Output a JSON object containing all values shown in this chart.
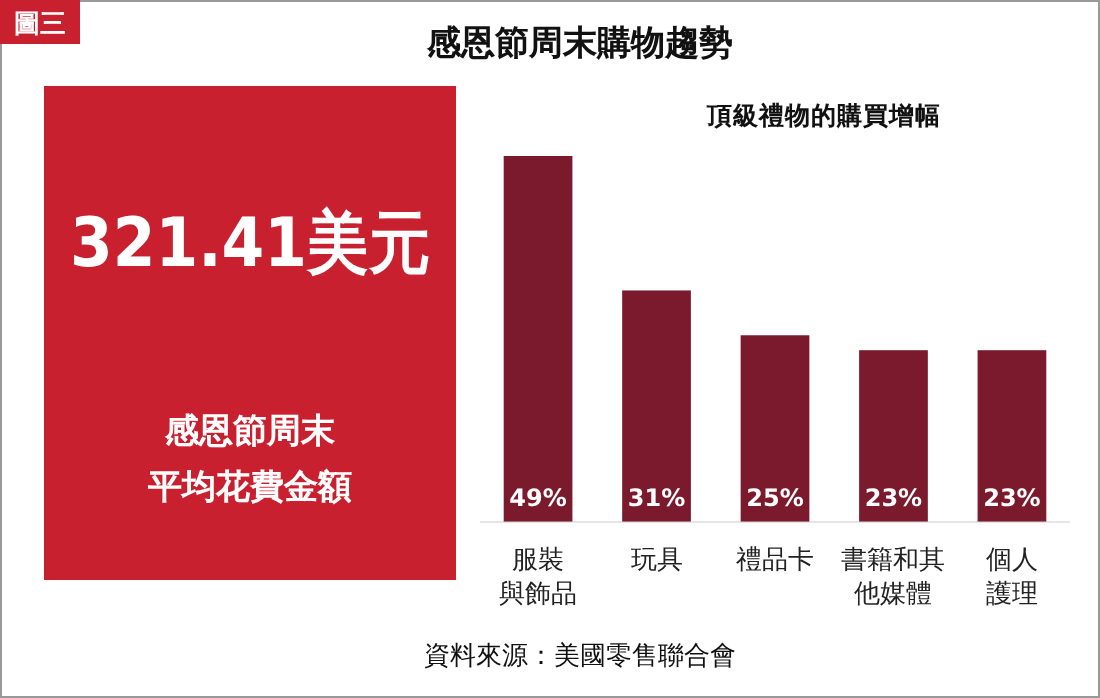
{
  "chart_data": [
    {
      "type": "bar",
      "title": "感恩節周末購物趨勢",
      "subtitle": "頂級禮物的購買增幅",
      "categories": [
        "服裝與飾品",
        "玩具",
        "禮品卡",
        "書籍和其他媒體",
        "個人護理"
      ],
      "values": [
        49,
        31,
        25,
        23,
        23
      ],
      "value_labels": [
        "49%",
        "31%",
        "25%",
        "23%",
        "23%"
      ],
      "color": "#7b1a2c",
      "relative": false,
      "ylim": [
        0,
        49
      ],
      "tick_labels": "x",
      "annotations": [
        "圖三",
        "資料來源：美國零售聯合會"
      ]
    },
    {
      "type": "other",
      "color": "#c8202e",
      "annotations": [
        "321.41美元",
        "感恩節周末",
        "平均花費金額"
      ]
    }
  ]
}
